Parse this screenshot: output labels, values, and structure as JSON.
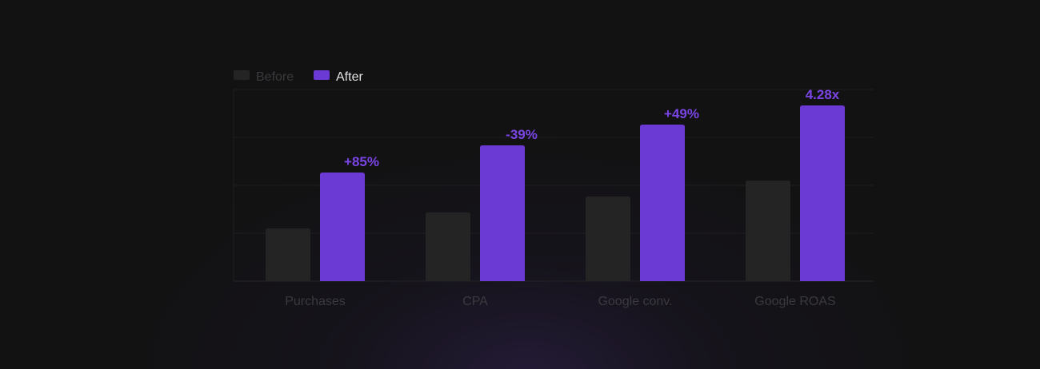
{
  "colors": {
    "before": "#242424",
    "after": "#6b3ad4",
    "accent_text": "#7b45e6",
    "legend_before_text": "#3a3a3e",
    "legend_after_text": "#e4e4e8",
    "grid": "#1f1f22"
  },
  "chart_data": {
    "type": "bar",
    "title": "",
    "xlabel": "",
    "ylabel": "",
    "categories": [
      "Purchases",
      "CPA",
      "Google conv.",
      "Google ROAS"
    ],
    "series": [
      {
        "name": "Before",
        "values": [
          33,
          43,
          53,
          63
        ]
      },
      {
        "name": "After",
        "values": [
          68,
          85,
          98,
          110
        ]
      }
    ],
    "data_labels": [
      "+85%",
      "-39%",
      "+49%",
      "4.28x"
    ],
    "ylim": [
      0,
      120
    ],
    "grid": true,
    "legend_position": "top-left"
  }
}
